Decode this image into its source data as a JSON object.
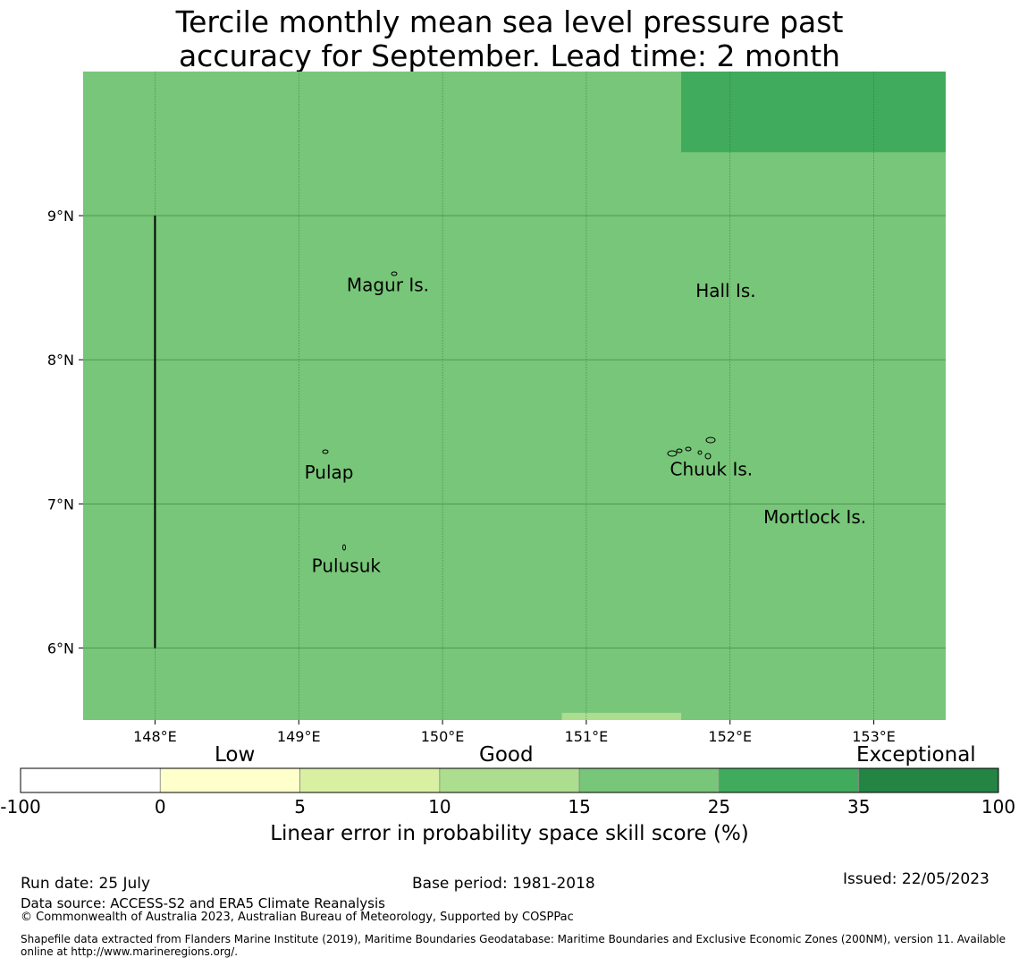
{
  "title_line1": "Tercile monthly mean sea level pressure past",
  "title_line2": "accuracy for September. Lead time: 2 month",
  "map": {
    "lon_range": [
      147.5,
      153.5
    ],
    "lat_range": [
      5.5,
      10.0
    ],
    "base_fill_color": "#78c679",
    "lon_ticks": [
      "148°E",
      "149°E",
      "150°E",
      "151°E",
      "152°E",
      "153°E"
    ],
    "lat_ticks": [
      "6°N",
      "7°N",
      "8°N",
      "9°N"
    ],
    "labels": [
      {
        "name": "Magur Is.",
        "lon": 149.62,
        "lat": 8.52
      },
      {
        "name": "Hall Is.",
        "lon": 151.97,
        "lat": 8.48
      },
      {
        "name": "Pulap",
        "lon": 149.21,
        "lat": 7.22
      },
      {
        "name": "Chuuk Is.",
        "lon": 151.87,
        "lat": 7.24
      },
      {
        "name": "Mortlock Is.",
        "lon": 152.59,
        "lat": 6.91
      },
      {
        "name": "Pulusuk",
        "lon": 149.33,
        "lat": 6.57
      }
    ],
    "patches": [
      {
        "lon": [
          151.66,
          153.5
        ],
        "lat": [
          9.44,
          10.0
        ],
        "color": "#41ab5d",
        "category": "25-35"
      },
      {
        "lon": [
          150.83,
          151.66
        ],
        "lat": [
          5.5,
          5.55
        ],
        "color": "#addd8e",
        "category": "10-15"
      }
    ],
    "boundary_line": {
      "lon": 148.0,
      "lat": [
        6.0,
        9.0
      ]
    }
  },
  "colorbar": {
    "ticks": [
      "-100",
      "0",
      "5",
      "10",
      "15",
      "25",
      "35",
      "100"
    ],
    "colors": [
      "#ffffff",
      "#ffffcc",
      "#d9f0a3",
      "#addd8e",
      "#78c679",
      "#41ab5d",
      "#238443"
    ],
    "category_labels": {
      "low": "Low",
      "good": "Good",
      "exceptional": "Exceptional"
    },
    "title": "Linear error in probability space skill score (%)"
  },
  "footer": {
    "run_date": "Run date: 25 July",
    "base_period": "Base period: 1981-2018",
    "issued": "Issued: 22/05/2023",
    "data_source": "Data source: ACCESS-S2 and ERA5 Climate Reanalysis",
    "copyright": "© Commonwealth of Australia 2023, Australian Bureau of Meteorology, Supported by COSPPac",
    "shapefile": "Shapefile data extracted from Flanders Marine Institute (2019), Maritime Boundaries Geodatabase: Maritime Boundaries and Exclusive Economic Zones (200NM), version 11. Available online at http://www.marineregions.org/."
  }
}
